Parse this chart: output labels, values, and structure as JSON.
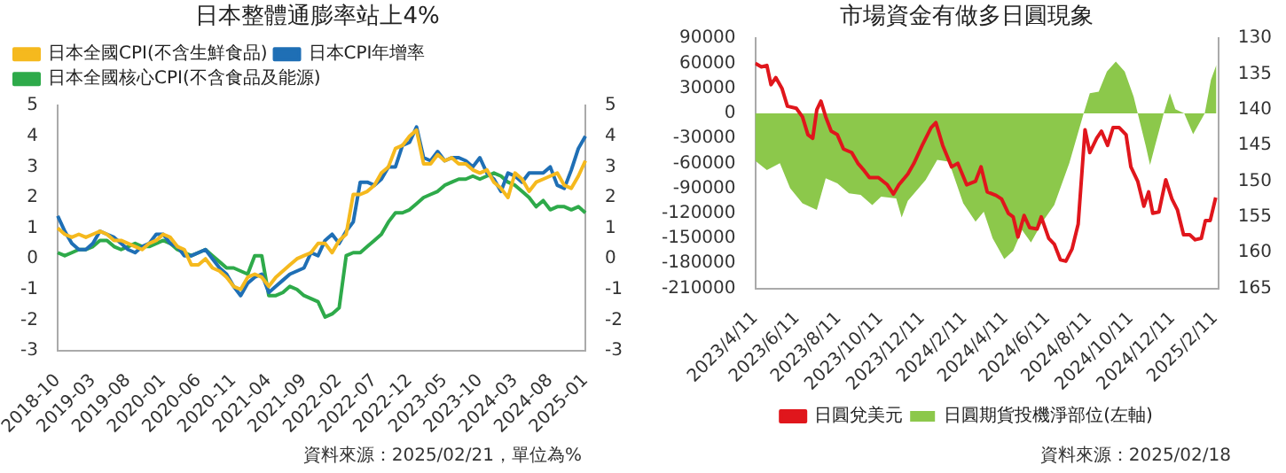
{
  "chart_data": [
    {
      "type": "line",
      "title": "日本整體通膨率站上4%",
      "categories": [
        "2018-10",
        null,
        null,
        null,
        null,
        "2019-03",
        null,
        null,
        null,
        null,
        "2019-08",
        null,
        null,
        null,
        null,
        "2020-01",
        null,
        null,
        null,
        null,
        "2020-06",
        null,
        null,
        null,
        null,
        "2020-11",
        null,
        null,
        null,
        null,
        "2021-04",
        null,
        null,
        null,
        null,
        "2021-09",
        null,
        null,
        null,
        null,
        "2022-02",
        null,
        null,
        null,
        null,
        "2022-07",
        null,
        null,
        null,
        null,
        "2022-12",
        null,
        null,
        null,
        null,
        "2023-05",
        null,
        null,
        null,
        null,
        "2023-10",
        null,
        null,
        null,
        null,
        "2024-03",
        null,
        null,
        null,
        null,
        "2024-08",
        null,
        null,
        null,
        null,
        "2025-01"
      ],
      "series": [
        {
          "name": "日本全國CPI(不含生鮮食品)",
          "color": "#f5b91e",
          "values": [
            1.0,
            0.8,
            0.7,
            0.8,
            0.7,
            0.8,
            0.9,
            0.8,
            0.6,
            0.6,
            0.5,
            0.4,
            0.3,
            0.5,
            0.6,
            0.8,
            0.7,
            0.4,
            0.3,
            -0.2,
            -0.2,
            0.0,
            -0.3,
            -0.4,
            -0.6,
            -0.9,
            -1.0,
            -0.6,
            -0.5,
            -0.6,
            -0.9,
            -0.6,
            -0.4,
            -0.2,
            0.0,
            0.1,
            0.2,
            0.5,
            0.5,
            0.2,
            0.6,
            0.8,
            2.1,
            2.1,
            2.2,
            2.4,
            2.8,
            3.0,
            3.6,
            3.7,
            4.0,
            4.2,
            3.1,
            3.1,
            3.4,
            3.2,
            3.3,
            3.1,
            3.1,
            2.9,
            2.8,
            2.9,
            2.5,
            2.3,
            2.0,
            2.8,
            2.6,
            2.2,
            2.5,
            2.6,
            2.7,
            2.8,
            2.4,
            2.3,
            2.7,
            3.2
          ]
        },
        {
          "name": "日本CPI年增率",
          "color": "#1f6fb5",
          "values": [
            1.4,
            0.9,
            0.5,
            0.3,
            0.3,
            0.5,
            0.9,
            0.8,
            0.7,
            0.5,
            0.3,
            0.2,
            0.4,
            0.5,
            0.8,
            0.8,
            0.5,
            0.4,
            0.1,
            0.1,
            0.2,
            0.3,
            0.0,
            -0.3,
            -0.5,
            -0.9,
            -1.2,
            -0.8,
            -0.6,
            -0.5,
            -1.1,
            -0.9,
            -0.7,
            -0.5,
            -0.4,
            -0.3,
            0.2,
            0.1,
            0.6,
            0.8,
            0.5,
            0.9,
            1.2,
            2.5,
            2.5,
            2.4,
            2.6,
            3.0,
            3.0,
            3.7,
            3.8,
            4.3,
            3.3,
            3.2,
            3.5,
            3.2,
            3.3,
            3.3,
            3.2,
            3.0,
            3.3,
            2.8,
            2.6,
            2.2,
            2.8,
            2.7,
            2.5,
            2.8,
            2.8,
            2.8,
            3.0,
            2.4,
            2.3,
            2.9,
            3.6,
            4.0
          ]
        },
        {
          "name": "日本全國核心CPI(不含食品及能源)",
          "color": "#2eaa4a",
          "values": [
            0.2,
            0.1,
            0.2,
            0.3,
            0.3,
            0.4,
            0.6,
            0.6,
            0.4,
            0.3,
            0.4,
            0.5,
            0.4,
            0.4,
            0.5,
            0.6,
            0.5,
            0.3,
            0.2,
            0.1,
            0.2,
            0.3,
            0.1,
            -0.1,
            -0.3,
            -0.3,
            -0.4,
            -0.5,
            0.1,
            0.1,
            -1.2,
            -1.2,
            -1.1,
            -0.9,
            -1.0,
            -1.2,
            -1.3,
            -1.4,
            -1.9,
            -1.8,
            -1.6,
            0.1,
            0.2,
            0.2,
            0.4,
            0.6,
            0.8,
            1.2,
            1.5,
            1.5,
            1.6,
            1.8,
            2.0,
            2.1,
            2.2,
            2.4,
            2.5,
            2.6,
            2.6,
            2.7,
            2.6,
            2.7,
            2.8,
            2.7,
            2.5,
            2.4,
            2.2,
            2.0,
            1.7,
            1.9,
            1.6,
            1.7,
            1.7,
            1.6,
            1.7,
            1.5
          ]
        }
      ],
      "ylim": [
        -3,
        5
      ],
      "yticks": [
        -3,
        -2,
        -1,
        0,
        1,
        2,
        3,
        4,
        5
      ],
      "y2lim": [
        -3,
        5
      ],
      "y2ticks": [
        -3,
        -2,
        -1,
        0,
        1,
        2,
        3,
        4,
        5
      ],
      "grid": false,
      "legend": "top left",
      "annotations": [
        "資料來源：2025/02/21，單位為%"
      ]
    },
    {
      "type": "area",
      "title": "市場資金有做多日圓現象",
      "series": [
        {
          "name": "日圓期貨投機淨部位(左軸)",
          "type": "area",
          "color": "#8cc84b",
          "x": [
            "2023-04-11",
            "2023-04-28",
            "2023-05-17",
            "2023-06-01",
            "2023-06-19",
            "2023-07-10",
            "2023-07-23",
            "2023-08-09",
            "2023-08-26",
            "2023-09-12",
            "2023-09-29",
            "2023-10-12",
            "2023-11-03",
            "2023-11-11",
            "2023-11-20",
            "2023-12-16",
            "2024-01-02",
            "2024-01-19",
            "2024-02-09",
            "2024-02-27",
            "2024-03-10",
            "2024-03-23",
            "2024-04-09",
            "2024-04-22",
            "2024-05-05",
            "2024-05-18",
            "2024-06-04",
            "2024-06-21",
            "2024-07-13",
            "2024-08-03",
            "2024-08-12",
            "2024-08-25",
            "2024-09-06",
            "2024-09-19",
            "2024-10-02",
            "2024-10-15",
            "2024-10-24",
            "2024-11-02",
            "2024-11-08",
            "2024-11-15",
            "2024-11-28",
            "2024-12-07",
            "2024-12-15",
            "2024-12-28",
            "2025-01-10",
            "2025-01-27",
            "2025-02-05",
            "2025-02-13"
          ],
          "values": [
            -57000,
            -68000,
            -60000,
            -90000,
            -108000,
            -116000,
            -78000,
            -84000,
            -96000,
            -98000,
            -110000,
            -100000,
            -102000,
            -125000,
            -105000,
            -80000,
            -56000,
            -58000,
            -108000,
            -130000,
            -118000,
            -150000,
            -175000,
            -165000,
            -140000,
            -155000,
            -130000,
            -110000,
            -60000,
            0,
            24000,
            26000,
            50000,
            62000,
            50000,
            20000,
            -10000,
            -40000,
            -62000,
            -40000,
            0,
            24000,
            5000,
            0,
            -25000,
            0,
            40000,
            58000
          ]
        },
        {
          "name": "日圓兌美元",
          "type": "line",
          "axis": "y2",
          "color": "#e0161c",
          "x": [
            "2023-04-11",
            "2023-04-20",
            "2023-04-28",
            "2023-05-04",
            "2023-05-11",
            "2023-05-20",
            "2023-05-28",
            "2023-06-10",
            "2023-06-19",
            "2023-06-27",
            "2023-07-04",
            "2023-07-10",
            "2023-07-16",
            "2023-07-23",
            "2023-07-31",
            "2023-08-09",
            "2023-08-18",
            "2023-08-30",
            "2023-09-08",
            "2023-09-17",
            "2023-09-25",
            "2023-10-08",
            "2023-10-21",
            "2023-10-30",
            "2023-11-07",
            "2023-11-20",
            "2023-11-29",
            "2023-12-11",
            "2023-12-24",
            "2023-12-31",
            "2024-01-10",
            "2024-01-23",
            "2024-02-01",
            "2024-02-14",
            "2024-02-27",
            "2024-03-06",
            "2024-03-15",
            "2024-03-28",
            "2024-04-05",
            "2024-04-15",
            "2024-04-22",
            "2024-04-29",
            "2024-05-08",
            "2024-05-16",
            "2024-05-27",
            "2024-06-02",
            "2024-06-13",
            "2024-06-21",
            "2024-06-30",
            "2024-07-08",
            "2024-07-17",
            "2024-07-26",
            "2024-08-05",
            "2024-08-12",
            "2024-08-22",
            "2024-08-29",
            "2024-09-07",
            "2024-09-15",
            "2024-09-24",
            "2024-10-04",
            "2024-10-11",
            "2024-10-21",
            "2024-10-30",
            "2024-11-06",
            "2024-11-12",
            "2024-11-21",
            "2024-12-01",
            "2024-12-10",
            "2024-12-18",
            "2024-12-27",
            "2025-01-05",
            "2025-01-13",
            "2025-01-22",
            "2025-01-28",
            "2025-02-04",
            "2025-02-12"
          ],
          "values": [
            133.5,
            134,
            133.8,
            136.5,
            135.5,
            137,
            139.5,
            139.8,
            141,
            143.5,
            144,
            140,
            138.8,
            141,
            143,
            143.5,
            145.5,
            146,
            147.5,
            148.5,
            149.5,
            149.5,
            150.5,
            151.8,
            150.5,
            149,
            147.5,
            145,
            142.5,
            141.8,
            145,
            148,
            147.5,
            150.5,
            150,
            148,
            151.5,
            152,
            152.5,
            154.5,
            155,
            157.8,
            154.8,
            156.5,
            156.7,
            155,
            158,
            158.8,
            161,
            161.2,
            159.5,
            156,
            142.8,
            146,
            144,
            143,
            145,
            142.5,
            142.5,
            143.5,
            148,
            150,
            153.5,
            151.5,
            154.5,
            154.3,
            149.8,
            152.5,
            154,
            157.5,
            157.5,
            158.2,
            158,
            155.5,
            155.5,
            152.3
          ]
        }
      ],
      "xlim": [
        "2023-04-11",
        "2025-02-16"
      ],
      "xticks": [
        {
          "value": "2023-04-11",
          "label": "2023/4/11"
        },
        {
          "value": "2023-06-11",
          "label": "2023/6/11"
        },
        {
          "value": "2023-08-11",
          "label": "2023/8/11"
        },
        {
          "value": "2023-10-11",
          "label": "2023/10/11"
        },
        {
          "value": "2023-12-11",
          "label": "2023/12/11"
        },
        {
          "value": "2024-02-11",
          "label": "2024/2/11"
        },
        {
          "value": "2024-04-11",
          "label": "2024/4/11"
        },
        {
          "value": "2024-06-11",
          "label": "2024/6/11"
        },
        {
          "value": "2024-08-11",
          "label": "2024/8/11"
        },
        {
          "value": "2024-10-11",
          "label": "2024/10/11"
        },
        {
          "value": "2024-12-11",
          "label": "2024/12/11"
        },
        {
          "value": "2025-02-11",
          "label": "2025/2/11"
        }
      ],
      "ylim": [
        -210000,
        90000
      ],
      "yticks": [
        -210000,
        -180000,
        -150000,
        -120000,
        -90000,
        -60000,
        -30000,
        0,
        30000,
        60000,
        90000
      ],
      "y2lim": [
        165,
        130
      ],
      "y2ticks": [
        130,
        135,
        140,
        145,
        150,
        155,
        160,
        165
      ],
      "grid": false,
      "legend": "bottom",
      "annotations": [
        "資料來源：2025/02/18"
      ]
    }
  ]
}
